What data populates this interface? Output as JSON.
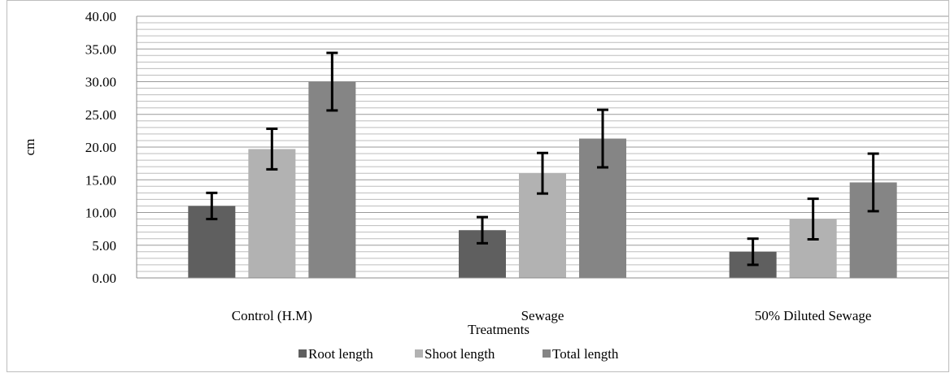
{
  "chart_data": {
    "type": "bar",
    "title": "",
    "xlabel": "Treatments",
    "ylabel": "cm",
    "ylim": [
      0,
      40
    ],
    "yticks": [
      "0.00",
      "5.00",
      "10.00",
      "15.00",
      "20.00",
      "25.00",
      "30.00",
      "35.00",
      "40.00"
    ],
    "categories": [
      "Control  (H.M)",
      "Sewage",
      "50% Diluted Sewage"
    ],
    "grid": true,
    "legend_position": "bottom",
    "series": [
      {
        "name": "Root length",
        "color": "#5f5f5f",
        "values": [
          11.0,
          7.3,
          4.0
        ],
        "errors": [
          2.0,
          2.0,
          2.0
        ]
      },
      {
        "name": "Shoot length",
        "color": "#b2b2b2",
        "values": [
          19.7,
          16.0,
          9.0
        ],
        "errors": [
          3.1,
          3.1,
          3.1
        ]
      },
      {
        "name": "Total length",
        "color": "#858585",
        "values": [
          30.0,
          21.3,
          14.6
        ],
        "errors": [
          4.4,
          4.4,
          4.4
        ]
      }
    ]
  }
}
